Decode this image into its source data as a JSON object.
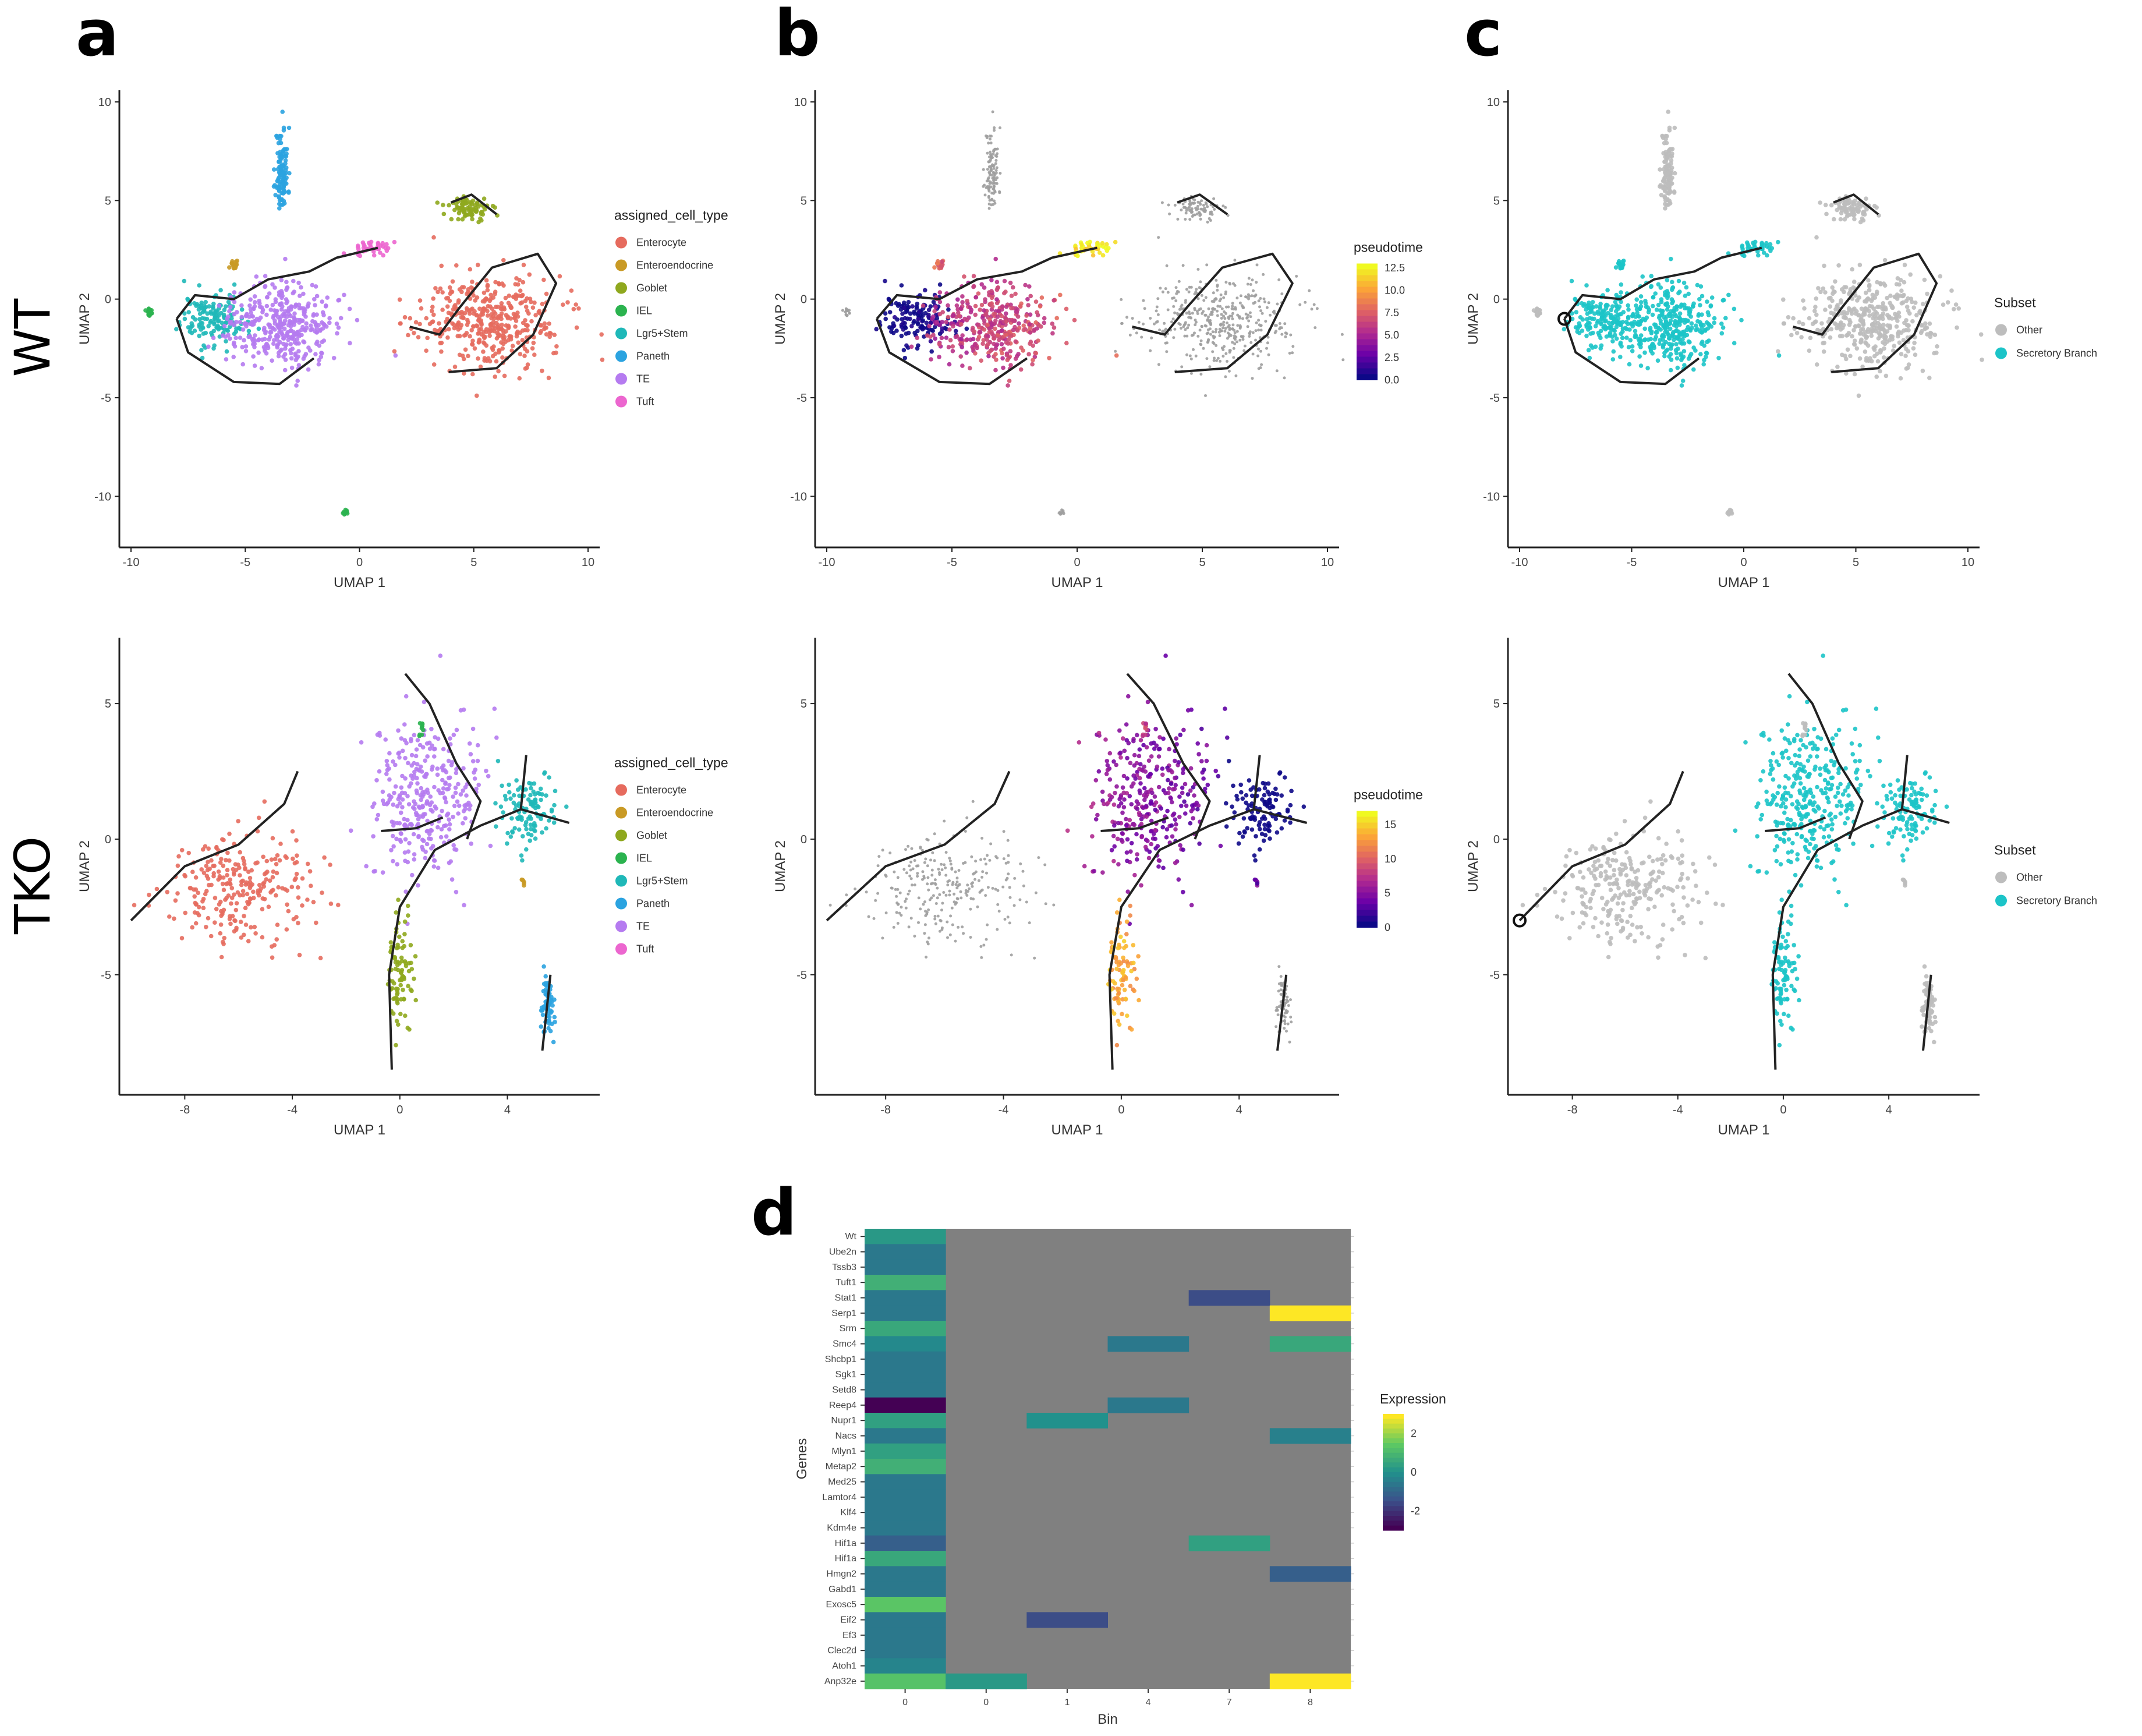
{
  "panel_letters": [
    "a",
    "b",
    "c",
    "d"
  ],
  "row_labels": [
    "WT",
    "TKO"
  ],
  "axis_labels": {
    "x": "UMAP 1",
    "y": "UMAP 2"
  },
  "cell_types": {
    "legend_title": "assigned_cell_type",
    "names": [
      "Enterocyte",
      "Enteroendocrine",
      "Goblet",
      "IEL",
      "Lgr5+Stem",
      "Paneth",
      "TE",
      "Tuft"
    ],
    "colors": [
      "#e66b5e",
      "#c99a25",
      "#8fa81e",
      "#2bb34f",
      "#1fb8b8",
      "#2ba3e0",
      "#b57bf0",
      "#ec66cf"
    ]
  },
  "subset": {
    "legend_title": "Subset",
    "names": [
      "Other",
      "Secretory Branch"
    ],
    "colors": [
      "#bdbdbd",
      "#1cc4c8"
    ]
  },
  "chart_data": [
    {
      "type": "scatter",
      "panel": "a",
      "condition": "WT",
      "title": "",
      "xlabel": "UMAP 1",
      "ylabel": "UMAP 2",
      "xlim": [
        -10,
        10
      ],
      "ylim": [
        -12,
        10
      ],
      "xticks": [
        -10,
        -5,
        0,
        5,
        10
      ],
      "yticks": [
        -10,
        -5,
        0,
        5,
        10
      ],
      "color_by": "assigned_cell_type",
      "clusters": [
        {
          "label": "Paneth",
          "center": [
            -3.4,
            6.5
          ],
          "spread": [
            0.25,
            2.0
          ],
          "n": 110
        },
        {
          "label": "Goblet",
          "center": [
            4.8,
            4.6
          ],
          "spread": [
            0.9,
            0.6
          ],
          "n": 80
        },
        {
          "label": "Tuft",
          "center": [
            0.5,
            2.6
          ],
          "spread": [
            0.8,
            0.3
          ],
          "n": 40
        },
        {
          "label": "Enteroendocrine",
          "center": [
            -5.5,
            1.7
          ],
          "spread": [
            0.2,
            0.3
          ],
          "n": 15
        },
        {
          "label": "IEL",
          "center": [
            -9.2,
            -0.6
          ],
          "spread": [
            0.15,
            0.2
          ],
          "n": 15
        },
        {
          "label": "IEL",
          "center": [
            -0.6,
            -10.8
          ],
          "spread": [
            0.1,
            0.15
          ],
          "n": 10
        },
        {
          "label": "Lgr5+Stem",
          "center": [
            -6.4,
            -1.0
          ],
          "spread": [
            1.3,
            1.2
          ],
          "n": 150
        },
        {
          "label": "TE",
          "center": [
            -3.5,
            -1.2
          ],
          "spread": [
            2.0,
            1.9
          ],
          "n": 380
        },
        {
          "label": "Enterocyte",
          "center": [
            5.8,
            -1.2
          ],
          "spread": [
            2.9,
            2.1
          ],
          "n": 420
        }
      ],
      "trajectory": [
        [
          [
            -8,
            -1
          ],
          [
            -7.2,
            0.2
          ],
          [
            -5.5,
            0
          ],
          [
            -4,
            1
          ],
          [
            -2.2,
            1.4
          ],
          [
            -1,
            2.1
          ],
          [
            0.8,
            2.6
          ]
        ],
        [
          [
            -8,
            -1
          ],
          [
            -7.5,
            -2.7
          ],
          [
            -5.5,
            -4.2
          ],
          [
            -3.5,
            -4.3
          ],
          [
            -2,
            -3
          ]
        ],
        [
          [
            2.2,
            -1.4
          ],
          [
            3.5,
            -1.8
          ],
          [
            4.4,
            -0.4
          ],
          [
            5.8,
            1.6
          ],
          [
            7.8,
            2.3
          ],
          [
            8.6,
            0.8
          ],
          [
            7.6,
            -1.8
          ],
          [
            6,
            -3.5
          ],
          [
            3.9,
            -3.7
          ]
        ],
        [
          [
            4,
            4.9
          ],
          [
            4.9,
            5.3
          ],
          [
            6,
            4.3
          ]
        ]
      ]
    },
    {
      "type": "scatter",
      "panel": "b",
      "condition": "WT",
      "title": "",
      "xlabel": "UMAP 1",
      "ylabel": "UMAP 2",
      "xlim": [
        -10,
        10
      ],
      "ylim": [
        -12,
        10
      ],
      "xticks": [
        -10,
        -5,
        0,
        5,
        10
      ],
      "yticks": [
        -10,
        -5,
        0,
        5,
        10
      ],
      "color_by": "pseudotime",
      "legend_title": "pseudotime",
      "colorbar_ticks": [
        "12.5",
        "10.0",
        "7.5",
        "5.0",
        "2.5",
        "0.0"
      ],
      "value_range": [
        0,
        13
      ],
      "colors": [
        "#0d0887",
        "#6a00a8",
        "#b12a90",
        "#e16462",
        "#fca636",
        "#f0f921"
      ]
    },
    {
      "type": "scatter",
      "panel": "c",
      "condition": "WT",
      "title": "",
      "xlabel": "UMAP 1",
      "ylabel": "UMAP 2",
      "xlim": [
        -10,
        10
      ],
      "ylim": [
        -12,
        10
      ],
      "xticks": [
        -10,
        -5,
        0,
        5,
        10
      ],
      "yticks": [
        -10,
        -5,
        0,
        5,
        10
      ],
      "color_by": "Subset",
      "legend_entries": [
        "Other",
        "Secretory Branch"
      ]
    },
    {
      "type": "scatter",
      "panel": "a",
      "condition": "TKO",
      "title": "",
      "xlabel": "UMAP 1",
      "ylabel": "UMAP 2",
      "xlim": [
        -10,
        7
      ],
      "ylim": [
        -9,
        7
      ],
      "xticks": [
        -8,
        -4,
        0,
        4
      ],
      "yticks": [
        -5,
        0,
        5
      ],
      "color_by": "assigned_cell_type",
      "clusters": [
        {
          "label": "Enterocyte",
          "center": [
            -6.2,
            -1.8
          ],
          "spread": [
            2.5,
            1.8
          ],
          "n": 260
        },
        {
          "label": "TE",
          "center": [
            1.0,
            1.5
          ],
          "spread": [
            1.9,
            2.8
          ],
          "n": 320
        },
        {
          "label": "Lgr5+Stem",
          "center": [
            4.8,
            1.2
          ],
          "spread": [
            1.0,
            1.2
          ],
          "n": 110
        },
        {
          "label": "Goblet",
          "center": [
            0.0,
            -5.0
          ],
          "spread": [
            0.4,
            1.8
          ],
          "n": 90
        },
        {
          "label": "Paneth",
          "center": [
            5.5,
            -6.1
          ],
          "spread": [
            0.2,
            0.9
          ],
          "n": 70
        },
        {
          "label": "IEL",
          "center": [
            0.8,
            4.1
          ],
          "spread": [
            0.1,
            0.3
          ],
          "n": 10
        },
        {
          "label": "Enteroendocrine",
          "center": [
            4.6,
            -1.6
          ],
          "spread": [
            0.1,
            0.2
          ],
          "n": 6
        }
      ],
      "trajectory": [
        [
          [
            -10,
            -3
          ],
          [
            -8,
            -1
          ],
          [
            -6,
            -0.2
          ],
          [
            -4.3,
            1.3
          ],
          [
            -3.8,
            2.5
          ]
        ],
        [
          [
            -0.3,
            -8.5
          ],
          [
            -0.4,
            -5
          ],
          [
            0,
            -2.5
          ],
          [
            1.3,
            -0.4
          ],
          [
            3,
            0.5
          ],
          [
            4.5,
            1.1
          ],
          [
            6.3,
            0.6
          ]
        ],
        [
          [
            0.2,
            6.1
          ],
          [
            1.1,
            5
          ],
          [
            2.1,
            2.8
          ],
          [
            3,
            1.4
          ],
          [
            2.5,
            0
          ]
        ],
        [
          [
            -0.7,
            0.3
          ],
          [
            0.6,
            0.4
          ],
          [
            1.6,
            0.8
          ]
        ],
        [
          [
            4.5,
            1.1
          ],
          [
            4.7,
            3.1
          ]
        ],
        [
          [
            5.6,
            -5
          ],
          [
            5.3,
            -7.8
          ]
        ]
      ]
    },
    {
      "type": "scatter",
      "panel": "b",
      "condition": "TKO",
      "title": "",
      "xlabel": "UMAP 1",
      "ylabel": "UMAP 2",
      "xlim": [
        -10,
        7
      ],
      "ylim": [
        -9,
        7
      ],
      "xticks": [
        -8,
        -4,
        0,
        4
      ],
      "yticks": [
        -5,
        0,
        5
      ],
      "color_by": "pseudotime",
      "legend_title": "pseudotime",
      "colorbar_ticks": [
        "15",
        "10",
        "5",
        "0"
      ],
      "value_range": [
        0,
        17
      ],
      "colors": [
        "#0d0887",
        "#6a00a8",
        "#b12a90",
        "#e16462",
        "#fca636",
        "#f0f921"
      ]
    },
    {
      "type": "scatter",
      "panel": "c",
      "condition": "TKO",
      "title": "",
      "xlabel": "UMAP 1",
      "ylabel": "UMAP 2",
      "xlim": [
        -10,
        7
      ],
      "ylim": [
        -9,
        7
      ],
      "xticks": [
        -8,
        -4,
        0,
        4
      ],
      "yticks": [
        -5,
        0,
        5
      ],
      "color_by": "Subset",
      "legend_entries": [
        "Other",
        "Secretory Branch"
      ]
    },
    {
      "type": "heatmap",
      "panel": "d",
      "title": "",
      "xlabel": "Bin",
      "ylabel": "Genes",
      "legend_title": "Expression",
      "legend_ticks": [
        "2",
        "0",
        "-2"
      ],
      "value_range": [
        -3,
        3
      ],
      "na_color": "#808080",
      "x_ticks": [
        "0",
        "0",
        "1",
        "4",
        "7",
        "8"
      ],
      "genes": [
        "Wt",
        "Ube2n",
        "Tssb3",
        "Tuft1",
        "Stat1",
        "Serp1",
        "Srm",
        "Smc4",
        "Shcbp1",
        "Sgk1",
        "Setd8",
        "Reep4",
        "Nupr1",
        "Nacs",
        "Mlyn1",
        "Metap2",
        "Med25",
        "Lamtor4",
        "Klf4",
        "Kdm4e",
        "Hif1a",
        "Hif1a",
        "Hmgn2",
        "Gabd1",
        "Exosc5",
        "Eif2",
        "Ef3",
        "Clec2d",
        "Atoh1",
        "Anp32e"
      ],
      "values": [
        [
          0.2,
          null,
          null,
          null,
          null,
          null
        ],
        [
          -0.6,
          null,
          null,
          null,
          null,
          null
        ],
        [
          -0.6,
          null,
          null,
          null,
          null,
          null
        ],
        [
          0.8,
          null,
          null,
          null,
          null,
          null
        ],
        [
          -0.6,
          null,
          null,
          null,
          -1.6,
          null
        ],
        [
          -0.6,
          null,
          null,
          null,
          null,
          3.0
        ],
        [
          0.6,
          null,
          null,
          null,
          null,
          null
        ],
        [
          -0.2,
          null,
          null,
          -0.6,
          null,
          0.6
        ],
        [
          -0.6,
          null,
          null,
          null,
          null,
          null
        ],
        [
          -0.6,
          null,
          null,
          null,
          null,
          null
        ],
        [
          -0.6,
          null,
          null,
          null,
          null,
          null
        ],
        [
          -3.0,
          null,
          null,
          -0.6,
          null,
          null
        ],
        [
          0.4,
          null,
          0.0,
          null,
          null,
          null
        ],
        [
          -0.6,
          null,
          null,
          null,
          null,
          -0.4
        ],
        [
          0.4,
          null,
          null,
          null,
          null,
          null
        ],
        [
          0.8,
          null,
          null,
          null,
          null,
          null
        ],
        [
          -0.6,
          null,
          null,
          null,
          null,
          null
        ],
        [
          -0.6,
          null,
          null,
          null,
          null,
          null
        ],
        [
          -0.6,
          null,
          null,
          null,
          null,
          null
        ],
        [
          -0.6,
          null,
          null,
          null,
          null,
          null
        ],
        [
          -1.2,
          null,
          null,
          null,
          0.4,
          null
        ],
        [
          0.6,
          null,
          null,
          null,
          null,
          null
        ],
        [
          -0.6,
          null,
          null,
          null,
          null,
          -1.2
        ],
        [
          -0.6,
          null,
          null,
          null,
          null,
          null
        ],
        [
          1.4,
          null,
          null,
          null,
          null,
          null
        ],
        [
          -0.6,
          null,
          -1.6,
          null,
          null,
          null
        ],
        [
          -0.6,
          null,
          null,
          null,
          null,
          null
        ],
        [
          -0.6,
          null,
          null,
          null,
          null,
          null
        ],
        [
          -0.3,
          null,
          null,
          null,
          null,
          null
        ],
        [
          1.3,
          0.2,
          null,
          null,
          null,
          3.0
        ]
      ]
    }
  ]
}
